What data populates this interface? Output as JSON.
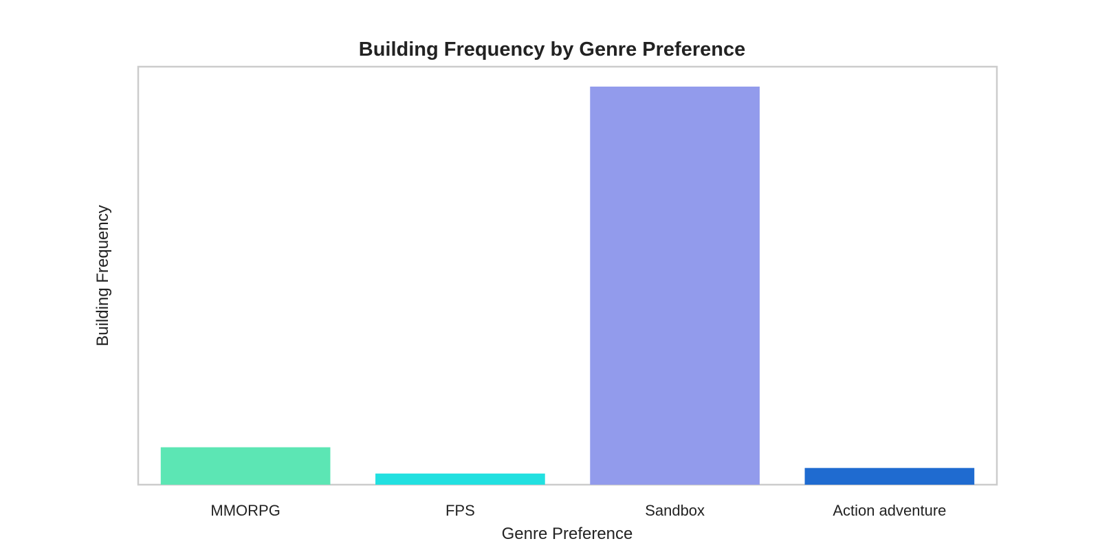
{
  "chart_data": {
    "type": "bar",
    "title": "Building Frequency by Genre Preference",
    "xlabel": "Genre Preference",
    "ylabel": "Building Frequency",
    "categories": [
      "MMORPG",
      "FPS",
      "Sandbox",
      "Action adventure"
    ],
    "values": [
      9.4,
      2.8,
      100,
      4.2
    ],
    "ylim": [
      0,
      105
    ],
    "colors": [
      "#5ce6b4",
      "#22e0e0",
      "#929bec",
      "#1f6bd0"
    ],
    "grid": false,
    "legend": "none",
    "y_tick_labels": "hidden"
  }
}
